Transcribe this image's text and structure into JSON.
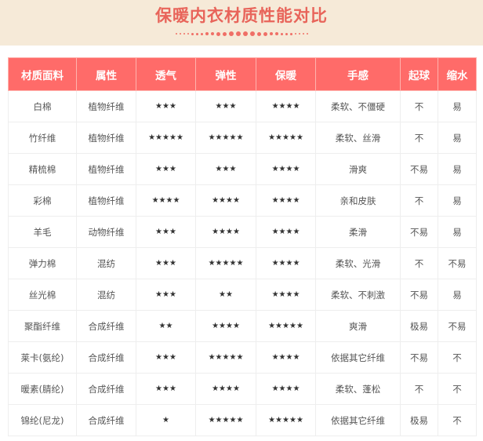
{
  "title": "保暖内衣材质性能对比",
  "colors": {
    "accent": "#ff6b69",
    "title": "#e8645a",
    "banner": "#f6ead8"
  },
  "table": {
    "headers": [
      "材质面料",
      "属性",
      "透气",
      "弹性",
      "保暖",
      "手感",
      "起球",
      "缩水"
    ],
    "rows": [
      [
        "白棉",
        "植物纤维",
        "★★★",
        "★★★",
        "★★★★",
        "柔软、不僵硬",
        "不",
        "易"
      ],
      [
        "竹纤维",
        "植物纤维",
        "★★★★★",
        "★★★★★",
        "★★★★★",
        "柔软、丝滑",
        "不",
        "易"
      ],
      [
        "精梳棉",
        "植物纤维",
        "★★★",
        "★★★",
        "★★★★",
        "滑爽",
        "不易",
        "易"
      ],
      [
        "彩棉",
        "植物纤维",
        "★★★★",
        "★★★★",
        "★★★★",
        "亲和皮肤",
        "不",
        "易"
      ],
      [
        "羊毛",
        "动物纤维",
        "★★★",
        "★★★★",
        "★★★★",
        "柔滑",
        "不易",
        "易"
      ],
      [
        "弹力棉",
        "混纺",
        "★★★",
        "★★★★★",
        "★★★★",
        "柔软、光滑",
        "不",
        "不易"
      ],
      [
        "丝光棉",
        "混纺",
        "★★★",
        "★★",
        "★★★★",
        "柔软、不刺激",
        "不易",
        "易"
      ],
      [
        "聚酯纤维",
        "合成纤维",
        "★★",
        "★★★★",
        "★★★★★",
        "爽滑",
        "极易",
        "不易"
      ],
      [
        "莱卡(氨纶)",
        "合成纤维",
        "★★★",
        "★★★★★",
        "★★★★",
        "依据其它纤维",
        "不易",
        "不"
      ],
      [
        "暖素(腈纶)",
        "合成纤维",
        "★★★",
        "★★★★",
        "★★★★",
        "柔软、蓬松",
        "不",
        "不"
      ],
      [
        "锦纶(尼龙)",
        "合成纤维",
        "★",
        "★★★★★",
        "★★★★★",
        "依据其它纤维",
        "极易",
        "不"
      ]
    ]
  }
}
